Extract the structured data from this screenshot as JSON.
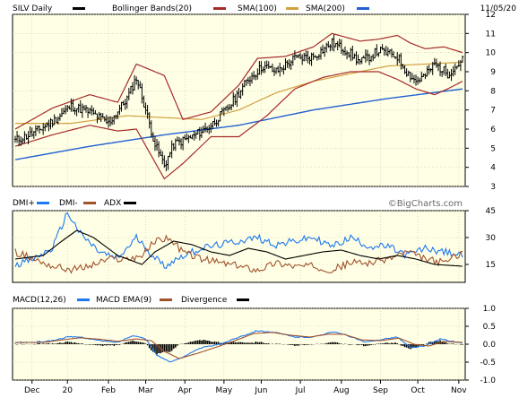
{
  "chart_data": {
    "type": "line",
    "title": "SILV Daily",
    "date": "11/05/20",
    "watermark": "©BigCharts.com",
    "colors": {
      "bg": "#FFFFE6",
      "grid": "#C8C8A0",
      "bars": "#000000",
      "bollinger": "#A52A2A",
      "sma100": "#D2A040",
      "sma200": "#2060D0",
      "dmi_plus": "#1E78F0",
      "dmi_minus": "#A0522D",
      "adx": "#000000",
      "macd": "#1E78F0",
      "macd_ema": "#A0522D",
      "divergence": "#000000"
    },
    "x_labels": [
      {
        "label": "Dec",
        "idx": 9
      },
      {
        "label": "20",
        "idx": 28
      },
      {
        "label": "Feb",
        "idx": 50
      },
      {
        "label": "Mar",
        "idx": 70
      },
      {
        "label": "Apr",
        "idx": 91
      },
      {
        "label": "May",
        "idx": 112
      },
      {
        "label": "Jun",
        "idx": 132
      },
      {
        "label": "Jul",
        "idx": 153
      },
      {
        "label": "Aug",
        "idx": 175
      },
      {
        "label": "Sep",
        "idx": 196
      },
      {
        "label": "Oct",
        "idx": 216
      },
      {
        "label": "Nov",
        "idx": 238
      }
    ],
    "n": 241,
    "price": {
      "legend": [
        {
          "label": "SILV Daily",
          "color": "#000000"
        },
        {
          "label": "Bollinger Bands(20)",
          "color": "#A52A2A"
        },
        {
          "label": "SMA(100)",
          "color": "#D2A040"
        },
        {
          "label": "SMA(200)",
          "color": "#2060D0"
        }
      ],
      "ylim": [
        3,
        12
      ],
      "yticks": [
        3,
        4,
        5,
        6,
        7,
        8,
        9,
        10,
        11,
        12
      ],
      "close_anchors": [
        [
          0,
          5.4
        ],
        [
          10,
          5.8
        ],
        [
          20,
          6.4
        ],
        [
          30,
          7.2
        ],
        [
          40,
          6.9
        ],
        [
          50,
          6.3
        ],
        [
          60,
          7.6
        ],
        [
          65,
          8.7
        ],
        [
          70,
          7.0
        ],
        [
          75,
          5.2
        ],
        [
          80,
          4.1
        ],
        [
          85,
          5.2
        ],
        [
          95,
          5.6
        ],
        [
          105,
          6.2
        ],
        [
          115,
          7.2
        ],
        [
          125,
          8.6
        ],
        [
          133,
          9.3
        ],
        [
          140,
          9.0
        ],
        [
          150,
          9.7
        ],
        [
          160,
          9.8
        ],
        [
          170,
          10.5
        ],
        [
          178,
          10.1
        ],
        [
          185,
          9.5
        ],
        [
          195,
          10.1
        ],
        [
          205,
          9.8
        ],
        [
          210,
          9.0
        ],
        [
          215,
          8.5
        ],
        [
          220,
          8.8
        ],
        [
          225,
          9.4
        ],
        [
          232,
          8.9
        ],
        [
          240,
          9.6
        ]
      ],
      "boll_upper_anchors": [
        [
          0,
          6.0
        ],
        [
          20,
          7.1
        ],
        [
          40,
          7.8
        ],
        [
          55,
          7.4
        ],
        [
          65,
          9.4
        ],
        [
          80,
          8.8
        ],
        [
          90,
          6.5
        ],
        [
          105,
          6.9
        ],
        [
          120,
          8.3
        ],
        [
          130,
          9.7
        ],
        [
          145,
          9.8
        ],
        [
          160,
          10.3
        ],
        [
          170,
          11.0
        ],
        [
          185,
          10.6
        ],
        [
          195,
          10.7
        ],
        [
          205,
          10.9
        ],
        [
          212,
          10.5
        ],
        [
          220,
          10.2
        ],
        [
          230,
          10.3
        ],
        [
          240,
          10.0
        ]
      ],
      "boll_lower_anchors": [
        [
          0,
          5.1
        ],
        [
          20,
          5.7
        ],
        [
          40,
          6.2
        ],
        [
          55,
          5.9
        ],
        [
          65,
          6.0
        ],
        [
          80,
          3.4
        ],
        [
          90,
          4.2
        ],
        [
          105,
          5.6
        ],
        [
          120,
          5.6
        ],
        [
          135,
          6.7
        ],
        [
          150,
          8.1
        ],
        [
          165,
          8.7
        ],
        [
          180,
          9.0
        ],
        [
          195,
          9.0
        ],
        [
          205,
          8.6
        ],
        [
          215,
          8.1
        ],
        [
          225,
          7.8
        ],
        [
          232,
          8.1
        ],
        [
          240,
          8.5
        ]
      ],
      "sma100_anchors": [
        [
          30,
          6.3
        ],
        [
          60,
          6.7
        ],
        [
          80,
          6.6
        ],
        [
          100,
          6.5
        ],
        [
          120,
          7.0
        ],
        [
          140,
          7.9
        ],
        [
          160,
          8.5
        ],
        [
          180,
          8.9
        ],
        [
          200,
          9.3
        ],
        [
          220,
          9.4
        ],
        [
          240,
          9.5
        ]
      ],
      "sma200_anchors": [
        [
          0,
          4.4
        ],
        [
          40,
          5.1
        ],
        [
          80,
          5.7
        ],
        [
          120,
          6.2
        ],
        [
          160,
          7.0
        ],
        [
          200,
          7.6
        ],
        [
          240,
          8.1
        ]
      ]
    },
    "dmi": {
      "legend": [
        {
          "label": "DMI+",
          "color": "#1E78F0"
        },
        {
          "label": "DMI-",
          "color": "#A0522D"
        },
        {
          "label": "ADX",
          "color": "#000000"
        }
      ],
      "ylim": [
        5,
        45
      ],
      "yticks": [
        15,
        30,
        45
      ],
      "plus_anchors": [
        [
          0,
          15
        ],
        [
          10,
          18
        ],
        [
          20,
          24
        ],
        [
          28,
          44
        ],
        [
          35,
          32
        ],
        [
          45,
          22
        ],
        [
          55,
          18
        ],
        [
          65,
          30
        ],
        [
          72,
          22
        ],
        [
          80,
          14
        ],
        [
          90,
          20
        ],
        [
          100,
          24
        ],
        [
          110,
          26
        ],
        [
          120,
          28
        ],
        [
          130,
          30
        ],
        [
          140,
          26
        ],
        [
          150,
          28
        ],
        [
          160,
          30
        ],
        [
          170,
          25
        ],
        [
          180,
          30
        ],
        [
          190,
          25
        ],
        [
          200,
          25
        ],
        [
          210,
          20
        ],
        [
          220,
          24
        ],
        [
          230,
          22
        ],
        [
          240,
          20
        ]
      ],
      "minus_anchors": [
        [
          0,
          22
        ],
        [
          10,
          18
        ],
        [
          20,
          14
        ],
        [
          30,
          12
        ],
        [
          40,
          14
        ],
        [
          50,
          18
        ],
        [
          60,
          18
        ],
        [
          68,
          20
        ],
        [
          75,
          28
        ],
        [
          82,
          30
        ],
        [
          90,
          22
        ],
        [
          100,
          18
        ],
        [
          110,
          16
        ],
        [
          120,
          14
        ],
        [
          130,
          12
        ],
        [
          140,
          16
        ],
        [
          150,
          14
        ],
        [
          160,
          14
        ],
        [
          170,
          12
        ],
        [
          180,
          16
        ],
        [
          190,
          16
        ],
        [
          200,
          18
        ],
        [
          210,
          22
        ],
        [
          220,
          18
        ],
        [
          230,
          16
        ],
        [
          240,
          22
        ]
      ],
      "adx_anchors": [
        [
          0,
          18
        ],
        [
          15,
          20
        ],
        [
          25,
          28
        ],
        [
          33,
          34
        ],
        [
          42,
          30
        ],
        [
          55,
          20
        ],
        [
          68,
          15
        ],
        [
          75,
          22
        ],
        [
          85,
          28
        ],
        [
          95,
          26
        ],
        [
          105,
          22
        ],
        [
          115,
          20
        ],
        [
          125,
          24
        ],
        [
          135,
          22
        ],
        [
          145,
          18
        ],
        [
          155,
          20
        ],
        [
          165,
          22
        ],
        [
          175,
          23
        ],
        [
          185,
          20
        ],
        [
          195,
          18
        ],
        [
          205,
          20
        ],
        [
          215,
          18
        ],
        [
          225,
          15
        ],
        [
          240,
          14
        ]
      ]
    },
    "macd": {
      "legend": [
        {
          "label": "MACD(12,26)",
          "color": "#1E78F0"
        },
        {
          "label": "MACD EMA(9)",
          "color": "#A0522D"
        },
        {
          "label": "Divergence",
          "color": "#000000"
        }
      ],
      "ylim": [
        -1.0,
        1.0
      ],
      "yticks": [
        -1.0,
        -0.5,
        0.0,
        0.5,
        1.0
      ],
      "macd_anchors": [
        [
          0,
          0.05
        ],
        [
          10,
          0.05
        ],
        [
          20,
          0.1
        ],
        [
          28,
          0.2
        ],
        [
          35,
          0.2
        ],
        [
          45,
          0.1
        ],
        [
          55,
          0.05
        ],
        [
          63,
          0.25
        ],
        [
          70,
          0.15
        ],
        [
          76,
          -0.3
        ],
        [
          83,
          -0.5
        ],
        [
          90,
          -0.35
        ],
        [
          100,
          -0.1
        ],
        [
          110,
          0.0
        ],
        [
          120,
          0.2
        ],
        [
          130,
          0.38
        ],
        [
          140,
          0.32
        ],
        [
          150,
          0.2
        ],
        [
          160,
          0.2
        ],
        [
          170,
          0.35
        ],
        [
          178,
          0.25
        ],
        [
          188,
          0.05
        ],
        [
          198,
          0.15
        ],
        [
          205,
          0.2
        ],
        [
          212,
          -0.1
        ],
        [
          220,
          -0.05
        ],
        [
          228,
          0.15
        ],
        [
          240,
          0.02
        ]
      ],
      "signal_anchors": [
        [
          0,
          0.05
        ],
        [
          15,
          0.05
        ],
        [
          25,
          0.12
        ],
        [
          35,
          0.18
        ],
        [
          45,
          0.14
        ],
        [
          55,
          0.08
        ],
        [
          65,
          0.15
        ],
        [
          73,
          0.1
        ],
        [
          80,
          -0.2
        ],
        [
          88,
          -0.4
        ],
        [
          98,
          -0.25
        ],
        [
          108,
          -0.08
        ],
        [
          118,
          0.1
        ],
        [
          128,
          0.3
        ],
        [
          138,
          0.33
        ],
        [
          148,
          0.25
        ],
        [
          158,
          0.2
        ],
        [
          168,
          0.28
        ],
        [
          176,
          0.28
        ],
        [
          186,
          0.12
        ],
        [
          196,
          0.1
        ],
        [
          206,
          0.17
        ],
        [
          214,
          0.0
        ],
        [
          222,
          -0.05
        ],
        [
          230,
          0.08
        ],
        [
          240,
          0.05
        ]
      ]
    }
  }
}
